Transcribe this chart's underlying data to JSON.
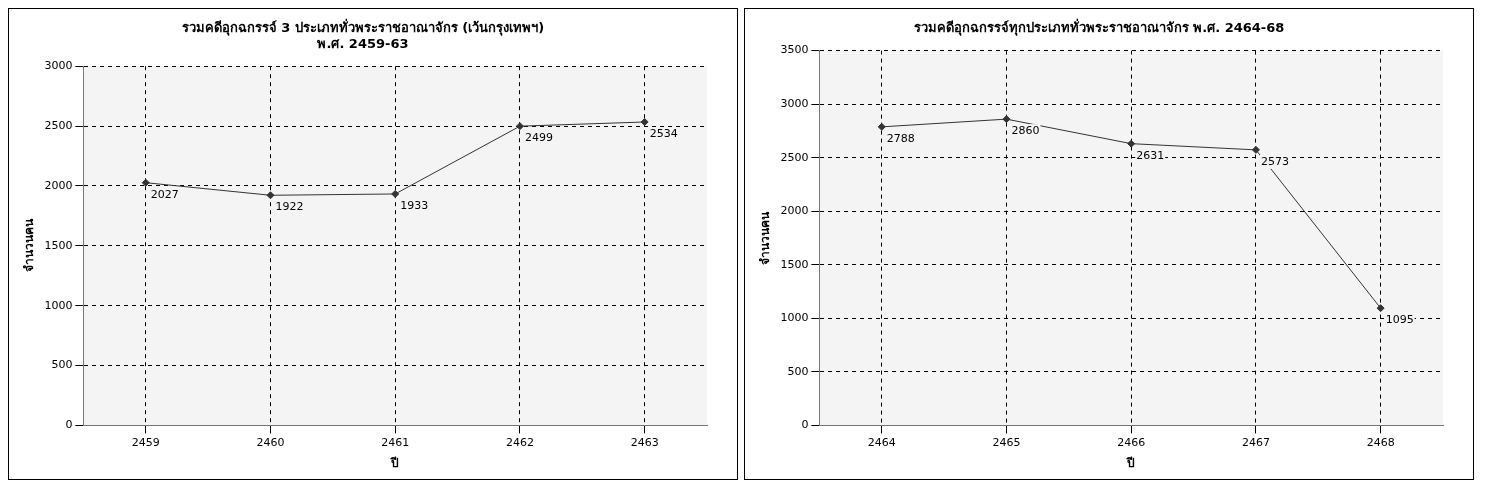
{
  "chart_data": [
    {
      "type": "line",
      "title": "รวมคดีอุกฉกรรจ์ 3 ประเภททั่วพระราชอาณาจักร (เว้นกรุงเทพฯ)\nพ.ศ. 2459-63",
      "xlabel": "ปี",
      "ylabel": "จำนวนคน",
      "categories": [
        "2459",
        "2460",
        "2461",
        "2462",
        "2463"
      ],
      "values": [
        2027,
        1922,
        1933,
        2499,
        2534
      ],
      "color": "#333333",
      "ylim": [
        0,
        3000
      ],
      "yticks": [
        0,
        500,
        1000,
        1500,
        2000,
        2500,
        3000
      ],
      "grid": true,
      "legend": false,
      "marker": "diamond",
      "data_labels": true
    },
    {
      "type": "line",
      "title": "รวมคดีอุกฉกรรจ์ทุกประเภททั่วพระราชอาณาจักร พ.ศ. 2464-68",
      "xlabel": "ปี",
      "ylabel": "จำนวนคน",
      "categories": [
        "2464",
        "2465",
        "2466",
        "2467",
        "2468"
      ],
      "values": [
        2788,
        2860,
        2631,
        2573,
        1095
      ],
      "color": "#333333",
      "ylim": [
        0,
        3500
      ],
      "yticks": [
        0,
        500,
        1000,
        1500,
        2000,
        2500,
        3000,
        3500
      ],
      "grid": true,
      "legend": false,
      "marker": "diamond",
      "data_labels": true
    }
  ]
}
